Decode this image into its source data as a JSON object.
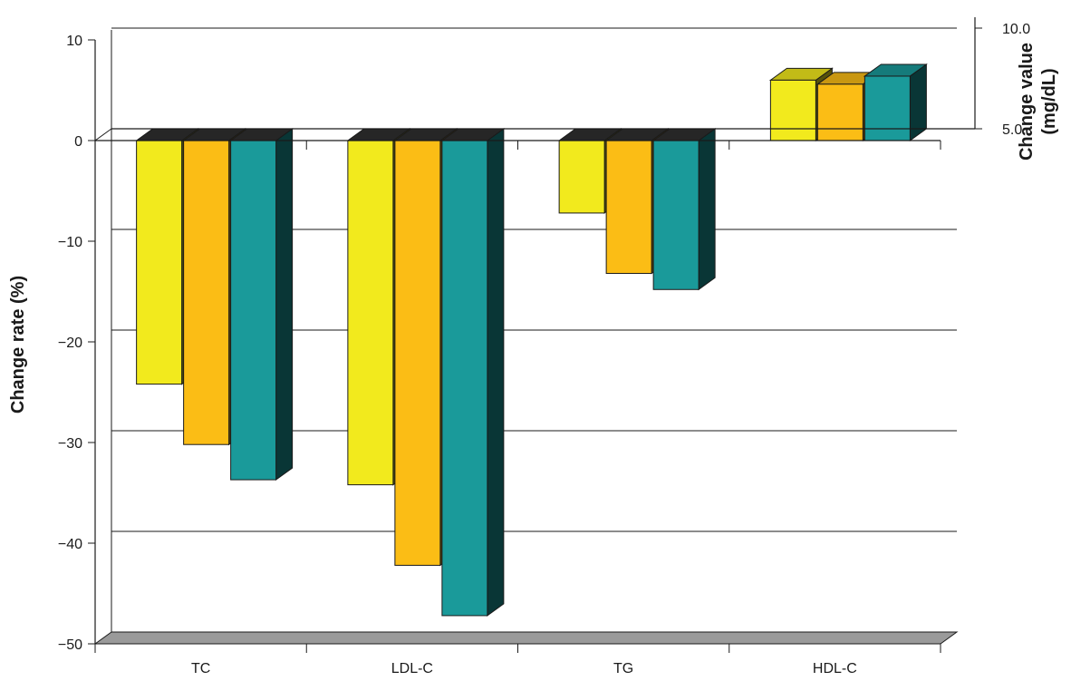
{
  "chart_data": {
    "type": "bar",
    "categories": [
      "TC",
      "LDL-C",
      "TG",
      "HDL-C"
    ],
    "ylabel": "Change rate (%)",
    "ylim": [
      -50,
      10
    ],
    "yticks": [
      10,
      0,
      -10,
      -20,
      -30,
      -40,
      -50
    ],
    "y2label": "Change value (mg/dL)",
    "y2label_lines": [
      "Change value",
      "(mg/dL)"
    ],
    "y2ticks": [
      {
        "value": 10.0,
        "label": "10.0"
      },
      {
        "value": 5.0,
        "label": "5.0"
      }
    ],
    "grid": true,
    "series": [
      {
        "values": [
          -24.2,
          -34.2,
          -7.2,
          8.0
        ],
        "color": "#f2ea1d"
      },
      {
        "values": [
          -30.2,
          -42.2,
          -13.2,
          7.8
        ],
        "color": "#fbbd15"
      },
      {
        "values": [
          -33.7,
          -47.2,
          -14.8,
          8.2
        ],
        "color": "#1a9a9a"
      }
    ],
    "series_axis_note": "HDL-C bars are plotted against the right axis (mg/dL)"
  }
}
